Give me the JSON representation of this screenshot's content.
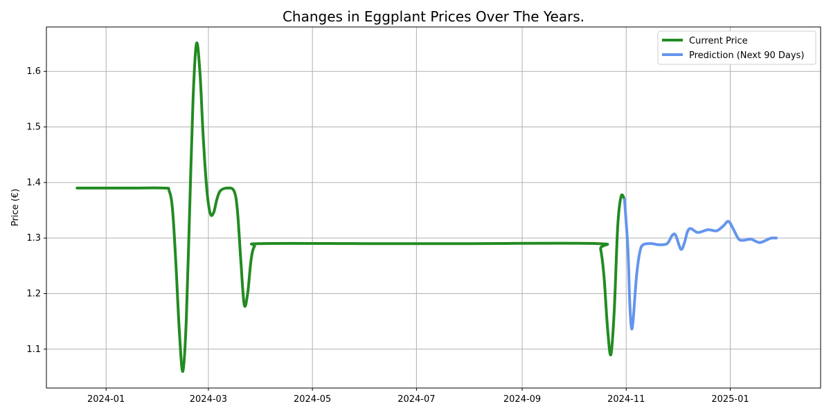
{
  "chart_data": {
    "type": "line",
    "title": "Changes in Eggplant Prices Over The Years.",
    "xlabel": "",
    "ylabel": "Price (€)",
    "xlim": [
      "2023-11-27",
      "2025-02-23"
    ],
    "ylim": [
      1.03,
      1.68
    ],
    "grid": true,
    "legend_position": "top-right",
    "x_ticks": [
      "2024-01",
      "2024-03",
      "2024-05",
      "2024-07",
      "2024-09",
      "2024-11",
      "2025-01"
    ],
    "y_ticks": [
      1.1,
      1.2,
      1.3,
      1.4,
      1.5,
      1.6
    ],
    "series": [
      {
        "name": "Current Price",
        "color": "#228b22",
        "points": [
          [
            "2023-12-15",
            1.39
          ],
          [
            "2024-01-15",
            1.39
          ],
          [
            "2024-02-04",
            1.39
          ],
          [
            "2024-02-07",
            1.385
          ],
          [
            "2024-02-09",
            1.35
          ],
          [
            "2024-02-11",
            1.25
          ],
          [
            "2024-02-13",
            1.13
          ],
          [
            "2024-02-15",
            1.06
          ],
          [
            "2024-02-17",
            1.15
          ],
          [
            "2024-02-19",
            1.35
          ],
          [
            "2024-02-21",
            1.55
          ],
          [
            "2024-02-23",
            1.65
          ],
          [
            "2024-02-25",
            1.6
          ],
          [
            "2024-02-27",
            1.48
          ],
          [
            "2024-02-29",
            1.39
          ],
          [
            "2024-03-02",
            1.345
          ],
          [
            "2024-03-04",
            1.345
          ],
          [
            "2024-03-06",
            1.37
          ],
          [
            "2024-03-08",
            1.385
          ],
          [
            "2024-03-12",
            1.39
          ],
          [
            "2024-03-16",
            1.385
          ],
          [
            "2024-03-18",
            1.35
          ],
          [
            "2024-03-20",
            1.26
          ],
          [
            "2024-03-22",
            1.18
          ],
          [
            "2024-03-24",
            1.2
          ],
          [
            "2024-03-26",
            1.26
          ],
          [
            "2024-03-28",
            1.285
          ],
          [
            "2024-04-01",
            1.29
          ],
          [
            "2024-06-01",
            1.29
          ],
          [
            "2024-08-01",
            1.29
          ],
          [
            "2024-10-15",
            1.29
          ],
          [
            "2024-10-17",
            1.28
          ],
          [
            "2024-10-19",
            1.23
          ],
          [
            "2024-10-21",
            1.14
          ],
          [
            "2024-10-23",
            1.09
          ],
          [
            "2024-10-25",
            1.17
          ],
          [
            "2024-10-27",
            1.32
          ],
          [
            "2024-10-29",
            1.375
          ],
          [
            "2024-10-31",
            1.37
          ]
        ]
      },
      {
        "name": "Prediction (Next 90 Days)",
        "color": "#6495ed",
        "points": [
          [
            "2024-10-31",
            1.37
          ],
          [
            "2024-11-02",
            1.28
          ],
          [
            "2024-11-03",
            1.19
          ],
          [
            "2024-11-04",
            1.14
          ],
          [
            "2024-11-05",
            1.15
          ],
          [
            "2024-11-07",
            1.23
          ],
          [
            "2024-11-09",
            1.275
          ],
          [
            "2024-11-11",
            1.288
          ],
          [
            "2024-11-16",
            1.29
          ],
          [
            "2024-11-20",
            1.288
          ],
          [
            "2024-11-25",
            1.29
          ],
          [
            "2024-11-28",
            1.305
          ],
          [
            "2024-11-30",
            1.305
          ],
          [
            "2024-12-03",
            1.28
          ],
          [
            "2024-12-05",
            1.29
          ],
          [
            "2024-12-07",
            1.312
          ],
          [
            "2024-12-09",
            1.317
          ],
          [
            "2024-12-13",
            1.31
          ],
          [
            "2024-12-19",
            1.315
          ],
          [
            "2024-12-24",
            1.313
          ],
          [
            "2024-12-28",
            1.322
          ],
          [
            "2024-12-31",
            1.33
          ],
          [
            "2025-01-03",
            1.315
          ],
          [
            "2025-01-06",
            1.298
          ],
          [
            "2025-01-09",
            1.296
          ],
          [
            "2025-01-13",
            1.298
          ],
          [
            "2025-01-18",
            1.292
          ],
          [
            "2025-01-22",
            1.296
          ],
          [
            "2025-01-25",
            1.3
          ],
          [
            "2025-01-28",
            1.3
          ]
        ]
      }
    ]
  }
}
